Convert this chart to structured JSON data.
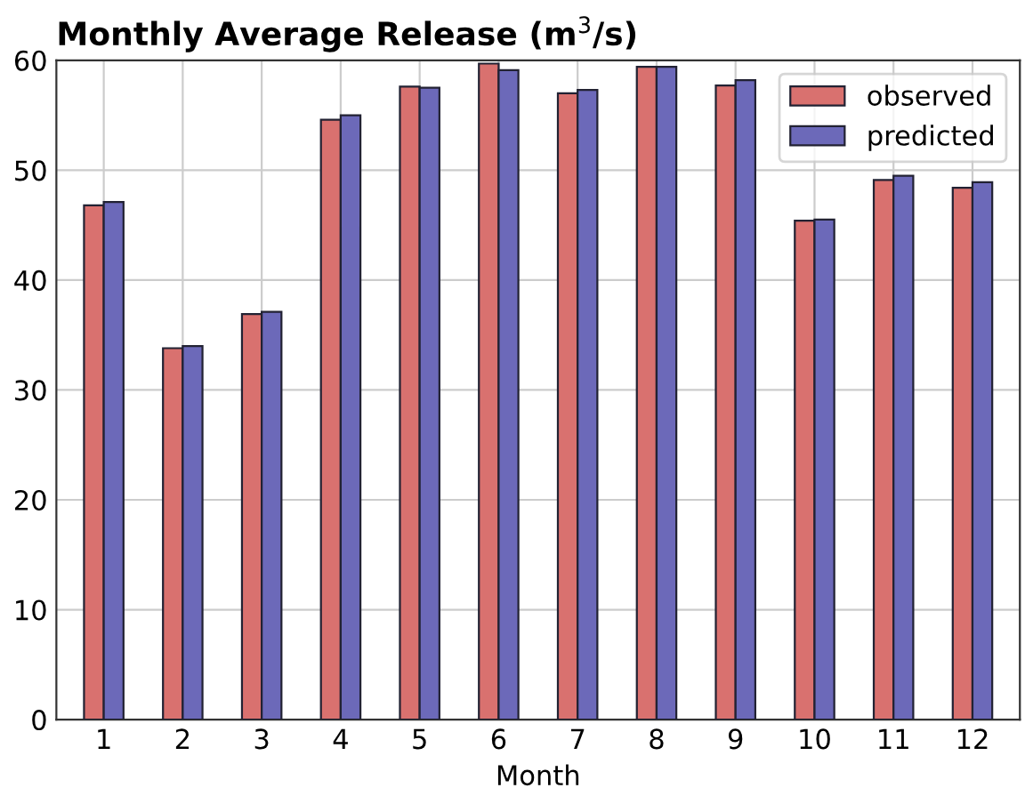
{
  "chart_data": {
    "type": "bar",
    "title": "Monthly Average Release (m$^{3}$/s)",
    "xlabel": "Month",
    "categories": [
      "1",
      "2",
      "3",
      "4",
      "5",
      "6",
      "7",
      "8",
      "9",
      "10",
      "11",
      "12"
    ],
    "series": [
      {
        "name": "observed",
        "color": "#d9716f",
        "values": [
          46.8,
          33.8,
          36.9,
          54.6,
          57.6,
          59.7,
          57.0,
          59.4,
          57.7,
          45.4,
          49.1,
          48.4
        ]
      },
      {
        "name": "predicted",
        "color": "#6c69b9",
        "values": [
          47.1,
          34.0,
          37.1,
          55.0,
          57.5,
          59.1,
          57.3,
          59.4,
          58.2,
          45.5,
          49.5,
          48.9
        ]
      }
    ],
    "ylim": [
      0,
      60
    ],
    "yticks": [
      0,
      10,
      20,
      30,
      40,
      50,
      60
    ],
    "grid": true,
    "legend": "top right"
  }
}
